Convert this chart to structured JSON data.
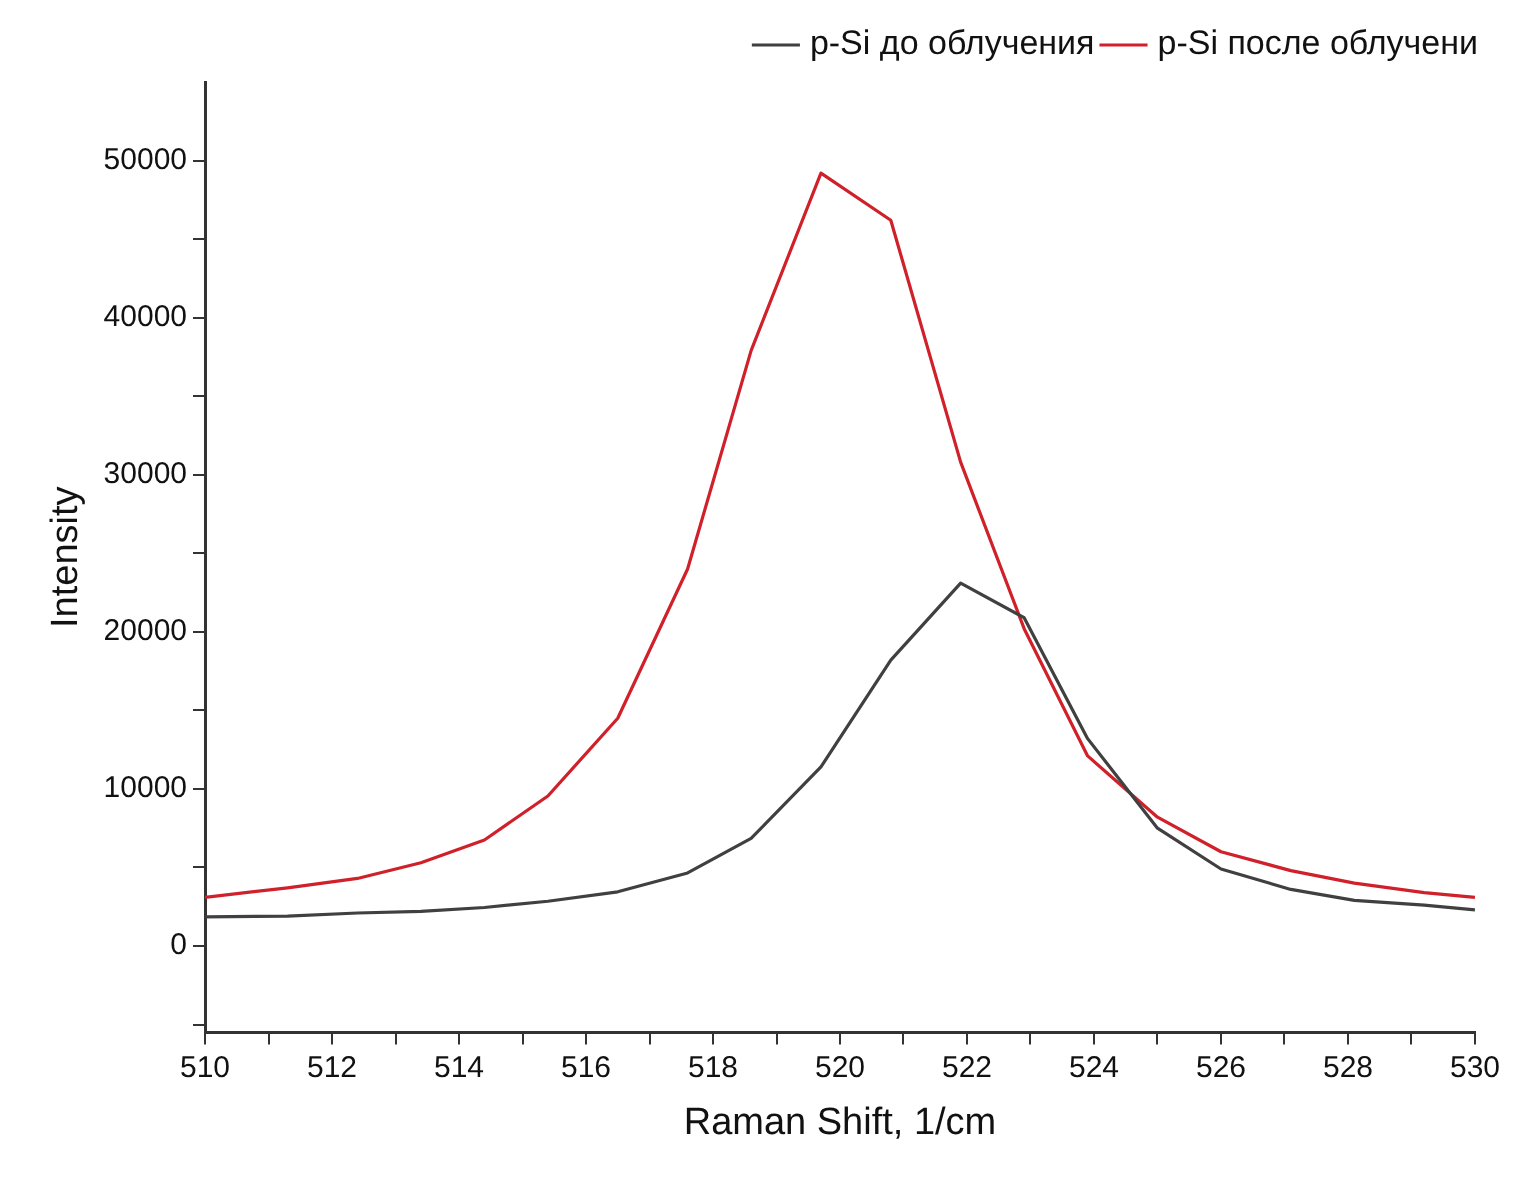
{
  "chart_data": {
    "type": "line",
    "xlabel": "Raman Shift, 1/cm",
    "ylabel": "Intensity",
    "x": [
      510.0,
      511.3,
      512.4,
      513.4,
      514.4,
      515.4,
      516.5,
      517.6,
      518.6,
      519.7,
      520.8,
      521.9,
      522.9,
      523.9,
      525.0,
      526.0,
      527.1,
      528.1,
      529.2,
      530.0
    ],
    "series": [
      {
        "name": "p-Si до облучения",
        "color": "#404040",
        "values": [
          1850,
          1900,
          2100,
          2200,
          2450,
          2850,
          3450,
          4650,
          6850,
          11400,
          18200,
          23100,
          20900,
          13200,
          7500,
          4900,
          3600,
          2900,
          2600,
          2300
        ]
      },
      {
        "name": "p-Si после облучени",
        "color": "#d0202a",
        "values": [
          3100,
          3700,
          4300,
          5300,
          6750,
          9550,
          14500,
          24000,
          37900,
          49200,
          46200,
          30800,
          20200,
          12100,
          8200,
          6000,
          4800,
          4000,
          3400,
          3100
        ]
      }
    ],
    "xlim": [
      510,
      530
    ],
    "xticks": [
      510,
      {
        "value": 511,
        "label": null
      },
      512,
      {
        "value": 513,
        "label": null
      },
      514,
      {
        "value": 515,
        "label": null
      },
      516,
      {
        "value": 517,
        "label": null
      },
      518,
      {
        "value": 519,
        "label": null
      },
      520,
      {
        "value": 521,
        "label": null
      },
      522,
      {
        "value": 523,
        "label": null
      },
      524,
      {
        "value": 525,
        "label": null
      },
      526,
      {
        "value": 527,
        "label": null
      },
      528,
      {
        "value": 529,
        "label": null
      },
      530
    ],
    "ylim": [
      -5500,
      55000
    ],
    "yticks": [
      {
        "value": -5000,
        "label": null
      },
      0,
      {
        "value": 5000,
        "label": null
      },
      10000,
      {
        "value": 15000,
        "label": null
      },
      20000,
      {
        "value": 25000,
        "label": null
      },
      30000,
      {
        "value": 35000,
        "label": null
      },
      40000,
      {
        "value": 45000,
        "label": null
      },
      50000
    ],
    "legend": "top right",
    "marker": "none",
    "line_style": "solid"
  }
}
